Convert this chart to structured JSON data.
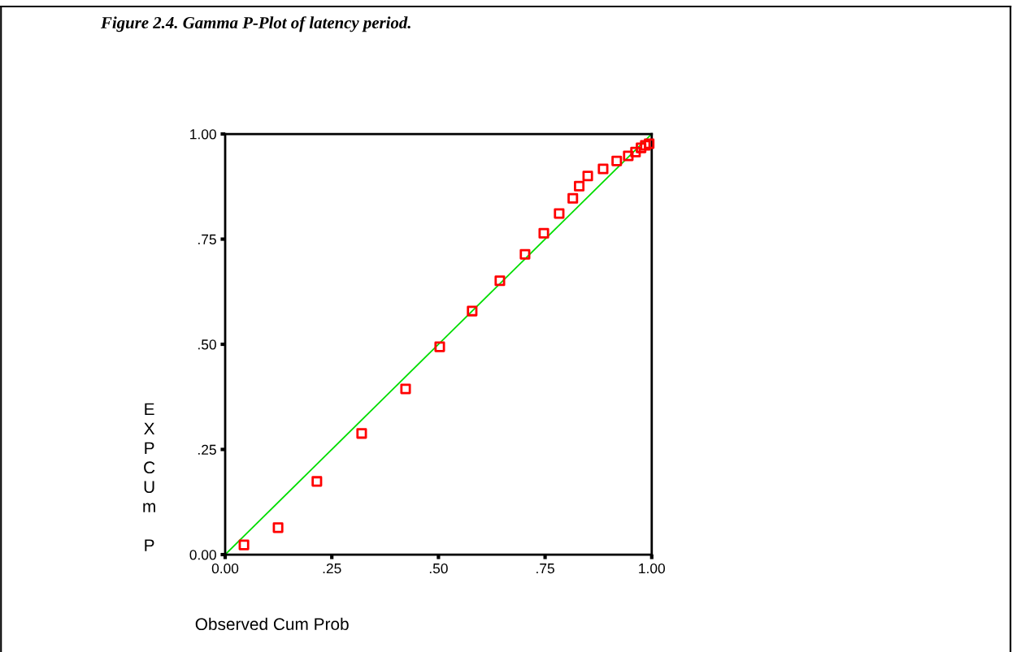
{
  "chart_data": {
    "type": "scatter",
    "title": "Figure 2.4. Gamma P-Plot of latency period.",
    "xlabel": "Observed Cum Prob",
    "ylabel": "EXPCUm P",
    "x": [
      0.044,
      0.124,
      0.215,
      0.32,
      0.423,
      0.503,
      0.579,
      0.644,
      0.703,
      0.747,
      0.783,
      0.815,
      0.83,
      0.85,
      0.886,
      0.918,
      0.945,
      0.962,
      0.975,
      0.985,
      0.994
    ],
    "series": [
      {
        "color": "#ff0000",
        "marker": "square",
        "values": [
          0.023,
          0.064,
          0.174,
          0.288,
          0.394,
          0.494,
          0.579,
          0.651,
          0.714,
          0.764,
          0.811,
          0.847,
          0.876,
          0.9,
          0.917,
          0.936,
          0.948,
          0.957,
          0.967,
          0.973,
          0.977
        ]
      },
      {
        "type": "line",
        "color": "#00dd00",
        "x": [
          0,
          1
        ],
        "values": [
          0,
          1
        ],
        "marker": "none",
        "line_style": "solid"
      }
    ],
    "xlim": [
      0,
      1
    ],
    "ylim": [
      0,
      1
    ],
    "xticks": [
      {
        "value": 0,
        "label": "0.00"
      },
      {
        "value": 0.25,
        "label": ".25"
      },
      {
        "value": 0.5,
        "label": ".50"
      },
      {
        "value": 0.75,
        "label": ".75"
      },
      {
        "value": 1,
        "label": "1.00"
      }
    ],
    "yticks": [
      {
        "value": 0,
        "label": "0.00"
      },
      {
        "value": 0.25,
        "label": ".25"
      },
      {
        "value": 0.5,
        "label": ".50"
      },
      {
        "value": 0.75,
        "label": ".75"
      },
      {
        "value": 1,
        "label": "1.00"
      }
    ],
    "grid": false,
    "legend": false
  }
}
